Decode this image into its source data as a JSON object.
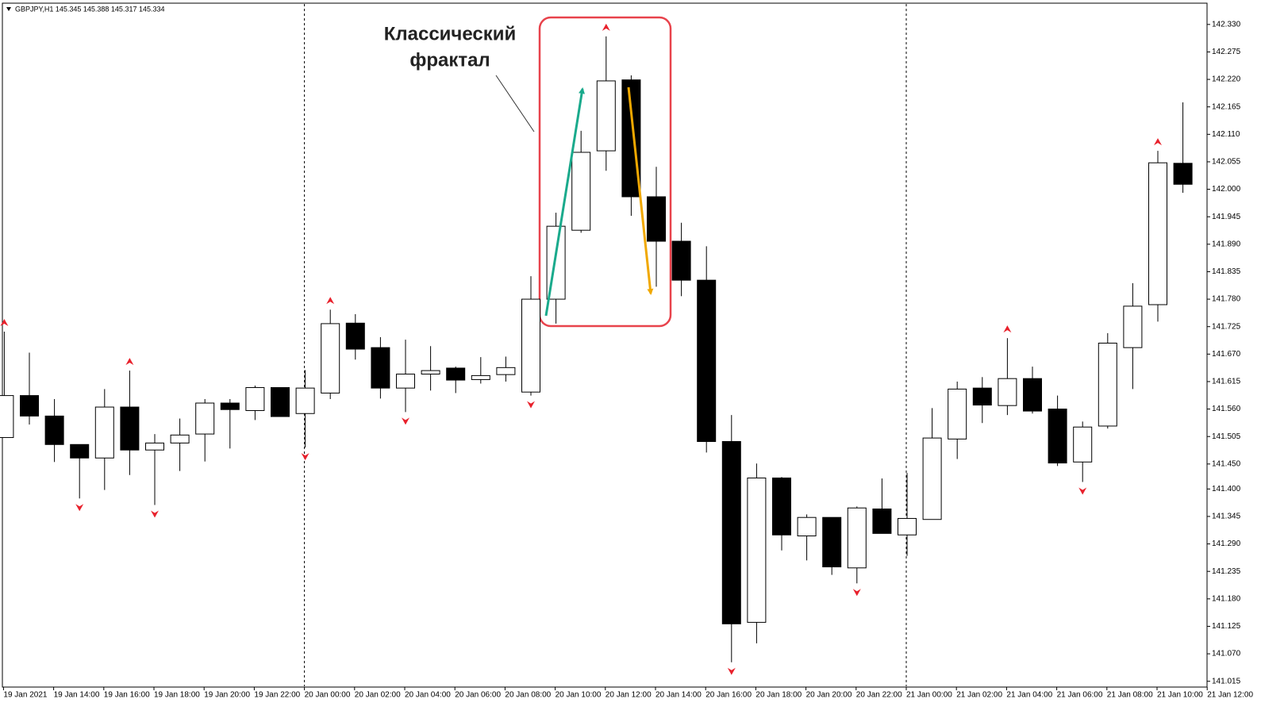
{
  "chart_data": {
    "type": "candlestick",
    "title": "GBPJPY,H1  145.345 145.388 145.317 145.334",
    "annotation": [
      "Классический",
      "фрактал"
    ],
    "categories": [
      "19 Jan 2021",
      null,
      "19 Jan 14:00",
      null,
      "19 Jan 16:00",
      null,
      "19 Jan 18:00",
      null,
      "19 Jan 20:00",
      null,
      "19 Jan 22:00",
      null,
      "20 Jan 00:00",
      null,
      "20 Jan 02:00",
      null,
      "20 Jan 04:00",
      null,
      "20 Jan 06:00",
      null,
      "20 Jan 08:00",
      null,
      "20 Jan 10:00",
      null,
      "20 Jan 12:00",
      null,
      "20 Jan 14:00",
      null,
      "20 Jan 16:00",
      null,
      "20 Jan 18:00",
      null,
      "20 Jan 20:00",
      null,
      "20 Jan 22:00",
      null,
      "21 Jan 00:00",
      null,
      "21 Jan 02:00",
      null,
      "21 Jan 04:00",
      null,
      "21 Jan 06:00",
      null,
      "21 Jan 08:00",
      null,
      "21 Jan 10:00",
      null,
      "21 Jan 12:00"
    ],
    "open": [
      141.503,
      141.587,
      141.546,
      141.489,
      141.462,
      141.564,
      141.478,
      141.492,
      141.51,
      141.572,
      141.557,
      141.603,
      141.551,
      141.592,
      141.732,
      141.683,
      141.602,
      141.63,
      141.642,
      141.619,
      141.629,
      141.594,
      141.78,
      141.918,
      142.077,
      142.219,
      141.985,
      141.896,
      141.818,
      141.495,
      141.133,
      141.422,
      141.306,
      141.343,
      141.242,
      141.36,
      141.308,
      141.339,
      141.5,
      141.602,
      141.567,
      141.621,
      141.56,
      141.454,
      141.526,
      141.683,
      141.769,
      142.052,
      null
    ],
    "high": [
      141.715,
      141.673,
      141.58,
      141.489,
      141.6,
      141.637,
      141.51,
      141.541,
      141.58,
      141.58,
      141.607,
      141.603,
      141.638,
      141.759,
      141.75,
      141.704,
      141.699,
      141.686,
      141.645,
      141.664,
      141.665,
      141.826,
      141.953,
      142.117,
      142.306,
      142.228,
      142.045,
      141.933,
      141.886,
      141.548,
      141.451,
      141.424,
      141.349,
      141.343,
      141.365,
      141.421,
      141.432,
      141.562,
      141.615,
      141.624,
      141.702,
      141.645,
      141.587,
      141.535,
      141.712,
      141.812,
      142.077,
      142.174,
      null
    ],
    "low": [
      141.503,
      141.529,
      141.454,
      141.381,
      141.398,
      141.428,
      141.368,
      141.436,
      141.455,
      141.481,
      141.538,
      141.545,
      141.483,
      141.58,
      141.659,
      141.581,
      141.554,
      141.597,
      141.592,
      141.611,
      141.615,
      141.587,
      141.731,
      141.913,
      142.037,
      141.947,
      141.805,
      141.786,
      141.473,
      141.053,
      141.091,
      141.277,
      141.257,
      141.228,
      141.211,
      141.311,
      141.266,
      141.339,
      141.46,
      141.532,
      141.548,
      141.551,
      141.446,
      141.414,
      141.521,
      141.6,
      141.735,
      141.993,
      null
    ],
    "close": [
      141.587,
      141.546,
      141.489,
      141.462,
      141.564,
      141.478,
      141.492,
      141.508,
      141.572,
      141.559,
      141.603,
      141.545,
      141.602,
      141.731,
      141.68,
      141.602,
      141.63,
      141.637,
      141.618,
      141.627,
      141.643,
      141.78,
      141.926,
      142.074,
      142.217,
      141.985,
      141.896,
      141.818,
      141.495,
      141.13,
      141.422,
      141.308,
      141.343,
      141.244,
      141.362,
      141.311,
      141.341,
      141.502,
      141.6,
      141.568,
      141.621,
      141.556,
      141.452,
      141.524,
      141.692,
      141.766,
      142.053,
      142.01,
      null
    ],
    "fractals_up": [
      141.715,
      null,
      null,
      null,
      null,
      141.637,
      null,
      null,
      null,
      null,
      null,
      null,
      null,
      141.759,
      null,
      null,
      null,
      null,
      null,
      null,
      null,
      null,
      null,
      null,
      142.306,
      null,
      null,
      null,
      null,
      null,
      null,
      null,
      null,
      null,
      null,
      null,
      null,
      null,
      null,
      null,
      141.702,
      null,
      null,
      null,
      null,
      null,
      142.077,
      null,
      null
    ],
    "fractals_down": [
      null,
      null,
      null,
      141.381,
      null,
      null,
      141.368,
      null,
      null,
      null,
      null,
      null,
      141.483,
      null,
      null,
      null,
      141.554,
      null,
      null,
      null,
      null,
      141.587,
      null,
      null,
      null,
      null,
      null,
      null,
      null,
      141.053,
      null,
      null,
      null,
      null,
      141.211,
      null,
      null,
      null,
      null,
      null,
      null,
      null,
      null,
      141.414,
      null,
      null,
      null,
      null,
      null
    ],
    "up_color": "#ffffff",
    "down_color": "#000000",
    "fractal_color": "#e8212c",
    "ylim": [
      141.005,
      142.371
    ],
    "yticks": [
      {
        "value": 142.33,
        "label": "142.330"
      },
      142.275,
      {
        "value": 142.22,
        "label": "142.220"
      },
      142.165,
      {
        "value": 142.11,
        "label": "142.110"
      },
      142.055,
      {
        "value": 142,
        "label": "142.000"
      },
      141.945,
      {
        "value": 141.89,
        "label": "141.890"
      },
      141.835,
      {
        "value": 141.78,
        "label": "141.780"
      },
      141.725,
      {
        "value": 141.67,
        "label": "141.670"
      },
      141.615,
      {
        "value": 141.56,
        "label": "141.560"
      },
      141.505,
      {
        "value": 141.45,
        "label": "141.450"
      },
      {
        "value": 141.4,
        "label": "141.400"
      },
      141.345,
      {
        "value": 141.29,
        "label": "141.290"
      },
      141.235,
      {
        "value": 141.18,
        "label": "141.180"
      },
      141.125,
      {
        "value": 141.07,
        "label": "141.070"
      },
      141.015
    ]
  }
}
